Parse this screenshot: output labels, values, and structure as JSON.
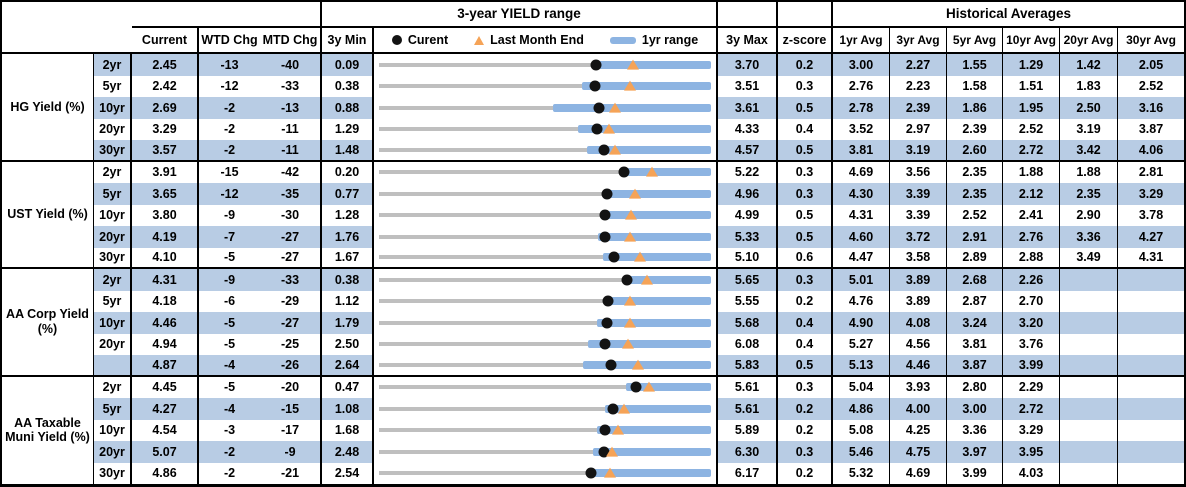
{
  "title_row": {
    "range_header": "3-year YIELD range",
    "hist_header": "Historical Averages"
  },
  "columns": {
    "current": "Current",
    "wtd": "WTD Chg",
    "mtd": "MTD Chg",
    "min3y": "3y Min",
    "max3y": "3y Max",
    "zscore": "z-score",
    "avgs": [
      "1yr Avg",
      "3yr Avg",
      "5yr Avg",
      "10yr Avg",
      "20yr Avg",
      "30yr Avg"
    ]
  },
  "legend": {
    "current": "Curent",
    "last_month_end": "Last Month End",
    "range1yr": "1yr range"
  },
  "colors": {
    "stripe": "#B8CCE4",
    "bar": "#8DB4E2",
    "gray_line": "#BFBFBF",
    "dot": "#131313",
    "triangle": "#F5A357",
    "border": "#000000"
  },
  "chart_data": {
    "type": "table",
    "embedded_chart_type": "range-bullet",
    "embedded_chart_note": "Per row: gray line spans 3y Min..3y Max, blue bar = 1yr range (estimated from pixels), black dot = Current, orange triangle = Last Month End (Current - MTD/100)",
    "groups": [
      {
        "label": "HG Yield (%)",
        "rows": [
          {
            "tenor": "2yr",
            "current": 2.45,
            "wtd": -13,
            "mtd": -40,
            "min3y": 0.09,
            "max3y": 3.7,
            "z": 0.2,
            "avgs": [
              3.0,
              2.27,
              1.55,
              1.29,
              1.42,
              2.05
            ],
            "yr1_min": 2.41,
            "yr1_max": 3.7,
            "lme": 2.85
          },
          {
            "tenor": "5yr",
            "current": 2.42,
            "wtd": -12,
            "mtd": -33,
            "min3y": 0.38,
            "max3y": 3.51,
            "z": 0.3,
            "avgs": [
              2.76,
              2.23,
              1.58,
              1.51,
              1.83,
              2.52
            ],
            "yr1_min": 2.29,
            "yr1_max": 3.51,
            "lme": 2.75
          },
          {
            "tenor": "10yr",
            "current": 2.69,
            "wtd": -2,
            "mtd": -13,
            "min3y": 0.88,
            "max3y": 3.61,
            "z": 0.5,
            "avgs": [
              2.78,
              2.39,
              1.86,
              1.95,
              2.5,
              3.16
            ],
            "yr1_min": 2.31,
            "yr1_max": 3.61,
            "lme": 2.82
          },
          {
            "tenor": "20yr",
            "current": 3.29,
            "wtd": -2,
            "mtd": -11,
            "min3y": 1.29,
            "max3y": 4.33,
            "z": 0.4,
            "avgs": [
              3.52,
              2.97,
              2.39,
              2.52,
              3.19,
              3.87
            ],
            "yr1_min": 3.11,
            "yr1_max": 4.33,
            "lme": 3.4
          },
          {
            "tenor": "30yr",
            "current": 3.57,
            "wtd": -2,
            "mtd": -11,
            "min3y": 1.48,
            "max3y": 4.57,
            "z": 0.5,
            "avgs": [
              3.81,
              3.19,
              2.6,
              2.72,
              3.42,
              4.06
            ],
            "yr1_min": 3.42,
            "yr1_max": 4.57,
            "lme": 3.68
          }
        ]
      },
      {
        "label": "UST Yield (%)",
        "rows": [
          {
            "tenor": "2yr",
            "current": 3.91,
            "wtd": -15,
            "mtd": -42,
            "min3y": 0.2,
            "max3y": 5.22,
            "z": 0.3,
            "avgs": [
              4.69,
              3.56,
              2.35,
              1.88,
              1.88,
              2.81
            ],
            "yr1_min": 3.88,
            "yr1_max": 5.22,
            "lme": 4.33
          },
          {
            "tenor": "5yr",
            "current": 3.65,
            "wtd": -12,
            "mtd": -35,
            "min3y": 0.77,
            "max3y": 4.96,
            "z": 0.3,
            "avgs": [
              4.3,
              3.39,
              2.35,
              2.12,
              2.35,
              3.29
            ],
            "yr1_min": 3.64,
            "yr1_max": 4.96,
            "lme": 4.0
          },
          {
            "tenor": "10yr",
            "current": 3.8,
            "wtd": -9,
            "mtd": -30,
            "min3y": 1.28,
            "max3y": 4.99,
            "z": 0.5,
            "avgs": [
              4.31,
              3.39,
              2.52,
              2.41,
              2.9,
              3.78
            ],
            "yr1_min": 3.78,
            "yr1_max": 4.99,
            "lme": 4.1
          },
          {
            "tenor": "20yr",
            "current": 4.19,
            "wtd": -7,
            "mtd": -27,
            "min3y": 1.76,
            "max3y": 5.33,
            "z": 0.5,
            "avgs": [
              4.6,
              3.72,
              2.91,
              2.76,
              3.36,
              4.27
            ],
            "yr1_min": 4.12,
            "yr1_max": 5.33,
            "lme": 4.46
          },
          {
            "tenor": "30yr",
            "current": 4.1,
            "wtd": -5,
            "mtd": -27,
            "min3y": 1.67,
            "max3y": 5.1,
            "z": 0.6,
            "avgs": [
              4.47,
              3.58,
              2.89,
              2.88,
              3.49,
              4.31
            ],
            "yr1_min": 3.98,
            "yr1_max": 5.1,
            "lme": 4.37
          }
        ]
      },
      {
        "label": "AA Corp Yield (%)",
        "rows": [
          {
            "tenor": "2yr",
            "current": 4.31,
            "wtd": -9,
            "mtd": -33,
            "min3y": 0.38,
            "max3y": 5.65,
            "z": 0.3,
            "avgs": [
              5.01,
              3.89,
              2.68,
              2.26,
              null,
              null
            ],
            "yr1_min": 4.3,
            "yr1_max": 5.65,
            "lme": 4.64
          },
          {
            "tenor": "5yr",
            "current": 4.18,
            "wtd": -6,
            "mtd": -29,
            "min3y": 1.12,
            "max3y": 5.55,
            "z": 0.2,
            "avgs": [
              4.76,
              3.89,
              2.87,
              2.7,
              null,
              null
            ],
            "yr1_min": 4.16,
            "yr1_max": 5.55,
            "lme": 4.47
          },
          {
            "tenor": "10yr",
            "current": 4.46,
            "wtd": -5,
            "mtd": -27,
            "min3y": 1.79,
            "max3y": 5.68,
            "z": 0.4,
            "avgs": [
              4.9,
              4.08,
              3.24,
              3.2,
              null,
              null
            ],
            "yr1_min": 4.35,
            "yr1_max": 5.68,
            "lme": 4.73
          },
          {
            "tenor": "20yr",
            "current": 4.94,
            "wtd": -5,
            "mtd": -25,
            "min3y": 2.5,
            "max3y": 6.08,
            "z": 0.4,
            "avgs": [
              5.27,
              4.56,
              3.81,
              3.76,
              null,
              null
            ],
            "yr1_min": 4.75,
            "yr1_max": 6.08,
            "lme": 5.19
          },
          {
            "tenor": "",
            "current": 4.87,
            "wtd": -4,
            "mtd": -26,
            "min3y": 2.64,
            "max3y": 5.83,
            "z": 0.5,
            "avgs": [
              5.13,
              4.46,
              3.87,
              3.99,
              null,
              null
            ],
            "yr1_min": 4.6,
            "yr1_max": 5.83,
            "lme": 5.13
          }
        ]
      },
      {
        "label": "AA Taxable Muni Yield (%)",
        "rows": [
          {
            "tenor": "2yr",
            "current": 4.45,
            "wtd": -5,
            "mtd": -20,
            "min3y": 0.47,
            "max3y": 5.61,
            "z": 0.3,
            "avgs": [
              5.04,
              3.93,
              2.8,
              2.29,
              null,
              null
            ],
            "yr1_min": 4.3,
            "yr1_max": 5.61,
            "lme": 4.65
          },
          {
            "tenor": "5yr",
            "current": 4.27,
            "wtd": -4,
            "mtd": -15,
            "min3y": 1.08,
            "max3y": 5.61,
            "z": 0.2,
            "avgs": [
              4.86,
              4.0,
              3.0,
              2.72,
              null,
              null
            ],
            "yr1_min": 4.16,
            "yr1_max": 5.61,
            "lme": 4.42
          },
          {
            "tenor": "10yr",
            "current": 4.54,
            "wtd": -3,
            "mtd": -17,
            "min3y": 1.68,
            "max3y": 5.89,
            "z": 0.2,
            "avgs": [
              5.08,
              4.25,
              3.36,
              3.29,
              null,
              null
            ],
            "yr1_min": 4.45,
            "yr1_max": 5.89,
            "lme": 4.71
          },
          {
            "tenor": "20yr",
            "current": 5.07,
            "wtd": -2,
            "mtd": -9,
            "min3y": 2.48,
            "max3y": 6.3,
            "z": 0.3,
            "avgs": [
              5.46,
              4.75,
              3.97,
              3.95,
              null,
              null
            ],
            "yr1_min": 4.94,
            "yr1_max": 6.3,
            "lme": 5.16
          },
          {
            "tenor": "30yr",
            "current": 4.86,
            "wtd": -2,
            "mtd": -21,
            "min3y": 2.54,
            "max3y": 6.17,
            "z": 0.2,
            "avgs": [
              5.32,
              4.69,
              3.99,
              4.03,
              null,
              null
            ],
            "yr1_min": 4.81,
            "yr1_max": 6.17,
            "lme": 5.07
          }
        ]
      }
    ]
  }
}
